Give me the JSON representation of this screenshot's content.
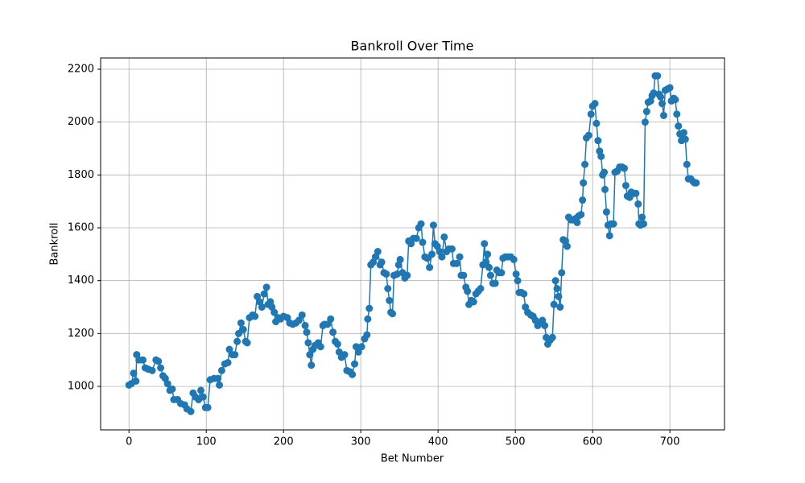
{
  "chart_data": {
    "type": "line",
    "title": "Bankroll Over Time",
    "x_label": "Bet Number",
    "y_label": "Bankroll",
    "color": "#1f77b4",
    "grid": true,
    "markers": true,
    "xlim": [
      -36.7,
      770.7
    ],
    "ylim": [
      835.5,
      2242.6
    ],
    "xticks": [
      0,
      100,
      200,
      300,
      400,
      500,
      600,
      700
    ],
    "yticks": [
      1000,
      1200,
      1400,
      1600,
      1800,
      2000,
      2200
    ],
    "x": [
      0,
      3,
      6,
      9,
      10,
      13,
      18,
      21,
      25,
      30,
      35,
      38,
      41,
      44,
      47,
      50,
      53,
      56,
      58,
      63,
      67,
      72,
      75,
      80,
      83,
      86,
      90,
      93,
      96,
      99,
      102,
      105,
      110,
      115,
      117,
      120,
      124,
      128,
      130,
      134,
      137,
      140,
      142,
      145,
      148,
      151,
      153,
      156,
      160,
      163,
      166,
      169,
      172,
      175,
      178,
      180,
      183,
      185,
      188,
      190,
      193,
      196,
      200,
      205,
      208,
      212,
      216,
      220,
      224,
      228,
      230,
      232,
      234,
      236,
      238,
      241,
      245,
      248,
      251,
      253,
      257,
      261,
      264,
      267,
      270,
      272,
      275,
      279,
      282,
      286,
      289,
      292,
      294,
      297,
      301,
      305,
      308,
      309,
      311,
      313,
      316,
      319,
      322,
      325,
      327,
      330,
      333,
      335,
      337,
      339,
      341,
      343,
      347,
      349,
      351,
      354,
      357,
      360,
      362,
      365,
      368,
      372,
      375,
      378,
      380,
      383,
      386,
      389,
      392,
      394,
      396,
      399,
      402,
      405,
      408,
      411,
      414,
      418,
      420,
      424,
      428,
      430,
      433,
      436,
      438,
      440,
      443,
      446,
      449,
      452,
      455,
      458,
      460,
      462,
      464,
      466,
      468,
      471,
      474,
      476,
      479,
      482,
      484,
      487,
      490,
      494,
      498,
      501,
      503,
      505,
      508,
      511,
      513,
      516,
      520,
      523,
      526,
      529,
      532,
      535,
      538,
      540,
      542,
      545,
      548,
      550,
      552,
      554,
      556,
      558,
      560,
      562,
      565,
      567,
      569,
      572,
      575,
      578,
      580,
      582,
      585,
      587,
      588,
      590,
      592,
      595,
      598,
      600,
      603,
      605,
      607,
      609,
      611,
      613,
      615,
      616,
      618,
      620,
      622,
      624,
      627,
      629,
      632,
      635,
      638,
      641,
      643,
      645,
      648,
      650,
      653,
      656,
      659,
      660,
      662,
      664,
      666,
      668,
      670,
      672,
      675,
      677,
      679,
      681,
      684,
      686,
      688,
      690,
      692,
      694,
      697,
      700,
      702,
      705,
      707,
      709,
      711,
      713,
      715,
      718,
      720,
      722,
      724,
      727,
      730,
      732,
      734
    ],
    "values": [
      1005,
      1010,
      1050,
      1020,
      1120,
      1100,
      1100,
      1070,
      1065,
      1060,
      1100,
      1095,
      1070,
      1040,
      1030,
      1010,
      985,
      990,
      950,
      950,
      935,
      930,
      915,
      905,
      975,
      960,
      950,
      985,
      960,
      920,
      920,
      1025,
      1030,
      1030,
      1005,
      1060,
      1085,
      1090,
      1140,
      1120,
      1120,
      1170,
      1200,
      1240,
      1215,
      1170,
      1165,
      1260,
      1270,
      1265,
      1340,
      1320,
      1300,
      1350,
      1375,
      1310,
      1320,
      1300,
      1280,
      1245,
      1260,
      1255,
      1265,
      1260,
      1240,
      1235,
      1240,
      1250,
      1270,
      1230,
      1205,
      1165,
      1120,
      1080,
      1140,
      1155,
      1165,
      1150,
      1230,
      1235,
      1235,
      1255,
      1205,
      1170,
      1160,
      1130,
      1110,
      1120,
      1060,
      1055,
      1045,
      1085,
      1150,
      1130,
      1150,
      1180,
      1195,
      1255,
      1295,
      1460,
      1470,
      1490,
      1510,
      1460,
      1470,
      1430,
      1425,
      1370,
      1325,
      1280,
      1275,
      1420,
      1425,
      1460,
      1480,
      1430,
      1410,
      1420,
      1550,
      1540,
      1560,
      1560,
      1600,
      1615,
      1545,
      1490,
      1485,
      1450,
      1500,
      1610,
      1540,
      1530,
      1510,
      1490,
      1565,
      1510,
      1520,
      1520,
      1465,
      1465,
      1490,
      1420,
      1420,
      1375,
      1360,
      1310,
      1325,
      1320,
      1350,
      1360,
      1370,
      1460,
      1540,
      1470,
      1500,
      1450,
      1420,
      1390,
      1390,
      1440,
      1430,
      1430,
      1485,
      1490,
      1490,
      1490,
      1480,
      1425,
      1400,
      1355,
      1355,
      1350,
      1300,
      1280,
      1270,
      1265,
      1250,
      1230,
      1240,
      1250,
      1230,
      1185,
      1160,
      1175,
      1185,
      1310,
      1400,
      1370,
      1340,
      1300,
      1430,
      1555,
      1550,
      1530,
      1640,
      1630,
      1630,
      1635,
      1620,
      1645,
      1650,
      1705,
      1770,
      1840,
      1940,
      1950,
      2030,
      2060,
      2070,
      1995,
      1930,
      1890,
      1870,
      1800,
      1810,
      1745,
      1660,
      1610,
      1570,
      1615,
      1615,
      1810,
      1815,
      1830,
      1830,
      1825,
      1760,
      1720,
      1715,
      1735,
      1730,
      1730,
      1690,
      1615,
      1610,
      1640,
      1615,
      2000,
      2040,
      2075,
      2080,
      2100,
      2110,
      2175,
      2175,
      2105,
      2095,
      2070,
      2025,
      2120,
      2125,
      2130,
      2080,
      2090,
      2085,
      2030,
      1985,
      1955,
      1930,
      1960,
      1935,
      1840,
      1785,
      1785,
      1775,
      1770,
      1770
    ]
  }
}
